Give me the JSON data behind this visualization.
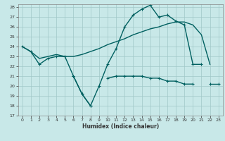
{
  "title": "",
  "xlabel": "Humidex (Indice chaleur)",
  "bg_color": "#c8e8e8",
  "grid_color": "#a0c8c8",
  "line_color": "#006060",
  "xmin": 0,
  "xmax": 23,
  "ymin": 17,
  "ymax": 28,
  "line1_y": [
    24.0,
    23.5,
    22.2,
    22.8,
    23.0,
    23.0,
    21.0,
    19.2,
    18.0,
    20.0,
    22.2,
    23.8,
    26.0,
    27.2,
    27.8,
    28.2,
    27.0,
    27.2,
    26.6,
    26.2,
    22.2,
    22.2,
    null,
    null
  ],
  "line2_y": [
    null,
    null,
    null,
    null,
    null,
    null,
    21.0,
    19.2,
    18.0,
    null,
    20.8,
    21.0,
    21.0,
    21.0,
    21.0,
    20.8,
    20.8,
    20.5,
    20.5,
    20.2,
    20.2,
    null,
    20.2,
    20.2
  ],
  "line3_y": [
    24.0,
    23.5,
    22.8,
    23.0,
    23.2,
    23.0,
    23.0,
    23.2,
    23.5,
    23.8,
    24.2,
    24.5,
    24.8,
    25.2,
    25.5,
    25.8,
    26.0,
    26.3,
    26.5,
    26.5,
    26.2,
    25.2,
    22.2,
    null
  ]
}
